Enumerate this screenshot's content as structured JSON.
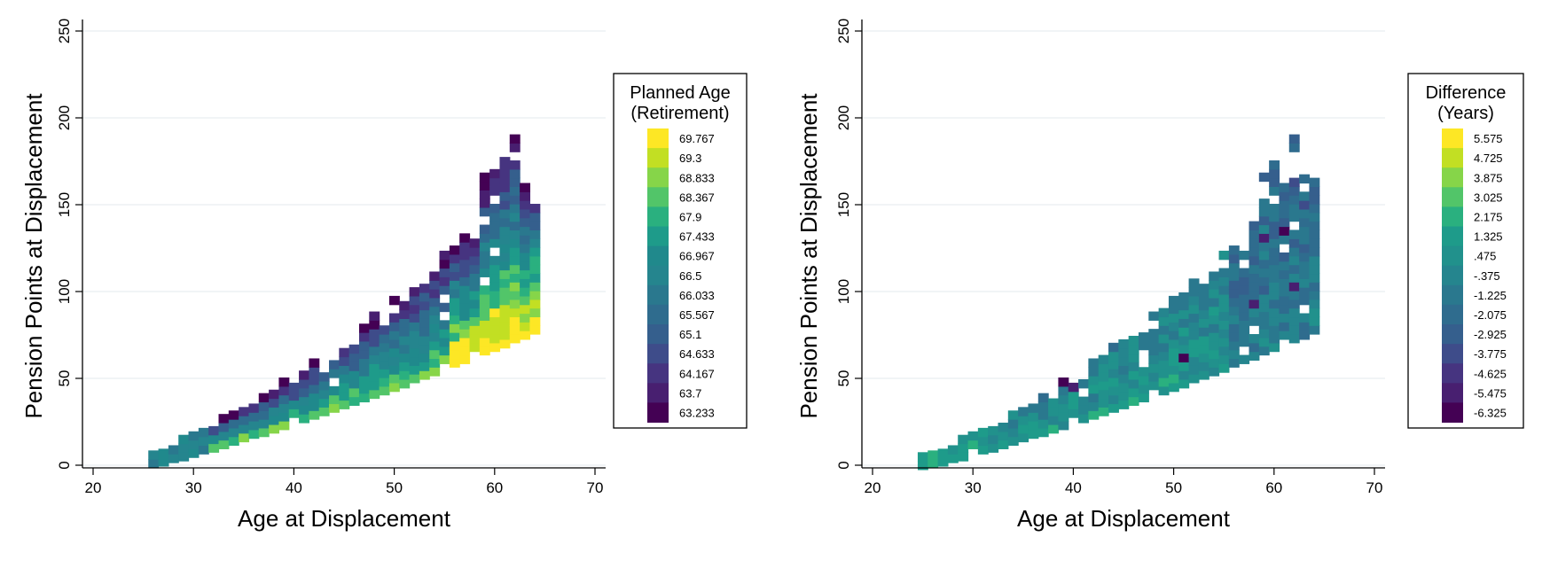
{
  "chart_data": [
    {
      "type": "heatmap",
      "title": "",
      "xlabel": "Age at Displacement",
      "ylabel": "Pension Points at Displacement",
      "xlim": [
        20,
        70
      ],
      "ylim": [
        0,
        250
      ],
      "xticks": [
        "20",
        "30",
        "40",
        "50",
        "60",
        "70"
      ],
      "yticks": [
        "0",
        "50",
        "100",
        "150",
        "200",
        "250"
      ],
      "grid": "horizontal",
      "legend_position": "right",
      "legend_title": [
        "Planned Age",
        "(Retirement)"
      ],
      "legend": [
        {
          "label": "69.767",
          "color": "#fde725"
        },
        {
          "label": "69.3",
          "color": "#c2df23"
        },
        {
          "label": "68.833",
          "color": "#86d549"
        },
        {
          "label": "68.367",
          "color": "#52c569"
        },
        {
          "label": "67.9",
          "color": "#2ab07f"
        },
        {
          "label": "67.433",
          "color": "#1e9b8a"
        },
        {
          "label": "66.967",
          "color": "#20898c"
        },
        {
          "label": "66.5",
          "color": "#25858e"
        },
        {
          "label": "66.033",
          "color": "#2a788e"
        },
        {
          "label": "65.567",
          "color": "#2f6c8e"
        },
        {
          "label": "65.1",
          "color": "#355f8d"
        },
        {
          "label": "64.633",
          "color": "#3e4c8a"
        },
        {
          "label": "64.167",
          "color": "#463480"
        },
        {
          "label": "63.7",
          "color": "#481f70"
        },
        {
          "label": "63.233",
          "color": "#440154"
        }
      ],
      "note": "Cells are 1-year age bins by 5-point pension bins; value = color class index (0 = highest legend class, 14 = lowest).",
      "cells": []
    },
    {
      "type": "heatmap",
      "title": "",
      "xlabel": "Age at Displacement",
      "ylabel": "Pension Points at Displacement",
      "xlim": [
        20,
        70
      ],
      "ylim": [
        0,
        250
      ],
      "xticks": [
        "20",
        "30",
        "40",
        "50",
        "60",
        "70"
      ],
      "yticks": [
        "0",
        "50",
        "100",
        "150",
        "200",
        "250"
      ],
      "grid": "horizontal",
      "legend_position": "right",
      "legend_title": [
        "Difference",
        "(Years)"
      ],
      "legend": [
        {
          "label": "5.575",
          "color": "#fde725"
        },
        {
          "label": "4.725",
          "color": "#c2df23"
        },
        {
          "label": "3.875",
          "color": "#86d549"
        },
        {
          "label": "3.025",
          "color": "#52c569"
        },
        {
          "label": "2.175",
          "color": "#2ab07f"
        },
        {
          "label": "1.325",
          "color": "#1e9b8a"
        },
        {
          "label": ".475",
          "color": "#21918c"
        },
        {
          "label": "-.375",
          "color": "#25858e"
        },
        {
          "label": "-1.225",
          "color": "#2a788e"
        },
        {
          "label": "-2.075",
          "color": "#2f6c8e"
        },
        {
          "label": "-2.925",
          "color": "#355f8d"
        },
        {
          "label": "-3.775",
          "color": "#3e4c8a"
        },
        {
          "label": "-4.625",
          "color": "#463480"
        },
        {
          "label": "-5.475",
          "color": "#481f70"
        },
        {
          "label": "-6.325",
          "color": "#440154"
        }
      ],
      "cells": []
    }
  ]
}
